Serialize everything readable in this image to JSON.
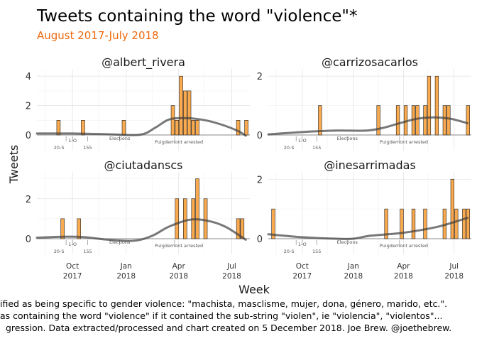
{
  "title": "Tweets containing the word \"violence\"*",
  "subtitle": "August 2017-July 2018",
  "colors": {
    "subtitle": "#ee6a10",
    "bar_fill": "#f9a94e",
    "bar_stroke": "#1f1f1f",
    "smooth": "#3f3f3f"
  },
  "chart_data": {
    "type": "bar",
    "subtype": "faceted weekly histogram with smoothed loess-style trend line",
    "xlabel": "Week",
    "ylabel": "Tweets",
    "x_unit": "week",
    "xlim": [
      "2017-08-01",
      "2018-08-01"
    ],
    "x_ticks": [
      {
        "date": "2017-10-01",
        "label": [
          "Oct",
          "2017"
        ]
      },
      {
        "date": "2018-01-01",
        "label": [
          "Jan",
          "2018"
        ]
      },
      {
        "date": "2018-04-01",
        "label": [
          "Apr",
          "2018"
        ]
      },
      {
        "date": "2018-07-01",
        "label": [
          "Jul",
          "2018"
        ]
      }
    ],
    "events": [
      {
        "date": "2017-09-20",
        "label": "20-S"
      },
      {
        "date": "2017-10-01",
        "label": "1-O"
      },
      {
        "date": "2017-10-27",
        "label": "155"
      },
      {
        "date": "2017-12-21",
        "label": "Elections"
      },
      {
        "date": "2018-03-25",
        "label": "Puigdemont arrested"
      }
    ],
    "panels": [
      {
        "name": "@albert_rivera",
        "ylim": [
          0,
          4.3
        ],
        "yticks": [
          0,
          2,
          4
        ],
        "bars": [
          {
            "week": "2017-09-04",
            "value": 1
          },
          {
            "week": "2017-10-16",
            "value": 1
          },
          {
            "week": "2017-12-25",
            "value": 1
          },
          {
            "week": "2018-03-19",
            "value": 2
          },
          {
            "week": "2018-03-26",
            "value": 1
          },
          {
            "week": "2018-04-02",
            "value": 4
          },
          {
            "week": "2018-04-09",
            "value": 3
          },
          {
            "week": "2018-04-16",
            "value": 3
          },
          {
            "week": "2018-04-23",
            "value": 1
          },
          {
            "week": "2018-04-30",
            "value": 1
          },
          {
            "week": "2018-07-09",
            "value": 1
          },
          {
            "week": "2018-07-23",
            "value": 1
          }
        ],
        "smooth": [
          {
            "date": "2017-08-01",
            "value": 0.1
          },
          {
            "date": "2017-10-01",
            "value": 0.1
          },
          {
            "date": "2017-12-01",
            "value": 0.05
          },
          {
            "date": "2018-01-25",
            "value": 0.02
          },
          {
            "date": "2018-02-20",
            "value": 0.5
          },
          {
            "date": "2018-03-15",
            "value": 1.05
          },
          {
            "date": "2018-04-10",
            "value": 1.15
          },
          {
            "date": "2018-05-10",
            "value": 1.05
          },
          {
            "date": "2018-06-10",
            "value": 0.75
          },
          {
            "date": "2018-07-10",
            "value": 0.3
          },
          {
            "date": "2018-07-25",
            "value": -0.05
          }
        ]
      },
      {
        "name": "@carrizosacarlos",
        "ylim": [
          0,
          2.15
        ],
        "yticks": [
          0,
          2
        ],
        "bars": [
          {
            "week": "2017-10-30",
            "value": 1
          },
          {
            "week": "2018-02-12",
            "value": 1
          },
          {
            "week": "2018-03-19",
            "value": 1
          },
          {
            "week": "2018-04-02",
            "value": 1
          },
          {
            "week": "2018-04-16",
            "value": 1
          },
          {
            "week": "2018-04-23",
            "value": 1
          },
          {
            "week": "2018-05-07",
            "value": 1
          },
          {
            "week": "2018-05-14",
            "value": 2
          },
          {
            "week": "2018-05-28",
            "value": 2
          },
          {
            "week": "2018-06-11",
            "value": 1
          },
          {
            "week": "2018-06-18",
            "value": 1
          },
          {
            "week": "2018-07-23",
            "value": 1
          }
        ],
        "smooth": [
          {
            "date": "2017-08-01",
            "value": 0.02
          },
          {
            "date": "2017-10-01",
            "value": 0.1
          },
          {
            "date": "2017-12-01",
            "value": 0.15
          },
          {
            "date": "2018-01-25",
            "value": 0.15
          },
          {
            "date": "2018-02-25",
            "value": 0.25
          },
          {
            "date": "2018-03-25",
            "value": 0.4
          },
          {
            "date": "2018-04-25",
            "value": 0.55
          },
          {
            "date": "2018-05-25",
            "value": 0.6
          },
          {
            "date": "2018-06-25",
            "value": 0.55
          },
          {
            "date": "2018-07-25",
            "value": 0.4
          }
        ]
      },
      {
        "name": "@ciutadanscs",
        "ylim": [
          0,
          3.2
        ],
        "yticks": [
          0,
          2
        ],
        "bars": [
          {
            "week": "2017-09-11",
            "value": 1
          },
          {
            "week": "2017-10-09",
            "value": 1
          },
          {
            "week": "2018-03-26",
            "value": 2
          },
          {
            "week": "2018-04-09",
            "value": 2
          },
          {
            "week": "2018-04-23",
            "value": 2
          },
          {
            "week": "2018-04-30",
            "value": 3
          },
          {
            "week": "2018-05-14",
            "value": 2
          },
          {
            "week": "2018-07-09",
            "value": 1
          },
          {
            "week": "2018-07-16",
            "value": 1
          }
        ],
        "smooth": [
          {
            "date": "2017-08-01",
            "value": 0.05
          },
          {
            "date": "2017-09-15",
            "value": 0.1
          },
          {
            "date": "2017-10-20",
            "value": 0.08
          },
          {
            "date": "2017-12-01",
            "value": -0.05
          },
          {
            "date": "2018-01-15",
            "value": -0.1
          },
          {
            "date": "2018-02-15",
            "value": 0.15
          },
          {
            "date": "2018-03-15",
            "value": 0.6
          },
          {
            "date": "2018-04-20",
            "value": 0.95
          },
          {
            "date": "2018-05-20",
            "value": 0.9
          },
          {
            "date": "2018-06-20",
            "value": 0.6
          },
          {
            "date": "2018-07-25",
            "value": -0.05
          }
        ]
      },
      {
        "name": "@inesarrimadas",
        "ylim": [
          0,
          2.15
        ],
        "yticks": [
          0,
          2
        ],
        "bars": [
          {
            "week": "2017-08-07",
            "value": 1
          },
          {
            "week": "2018-02-26",
            "value": 1
          },
          {
            "week": "2018-03-26",
            "value": 1
          },
          {
            "week": "2018-04-16",
            "value": 1
          },
          {
            "week": "2018-05-07",
            "value": 1
          },
          {
            "week": "2018-06-11",
            "value": 1
          },
          {
            "week": "2018-06-25",
            "value": 2
          },
          {
            "week": "2018-07-02",
            "value": 1
          },
          {
            "week": "2018-07-16",
            "value": 1
          },
          {
            "week": "2018-07-23",
            "value": 1
          }
        ],
        "smooth": [
          {
            "date": "2017-08-01",
            "value": 0.15
          },
          {
            "date": "2017-10-01",
            "value": 0.05
          },
          {
            "date": "2017-12-01",
            "value": 0.0
          },
          {
            "date": "2018-01-01",
            "value": 0.0
          },
          {
            "date": "2018-02-01",
            "value": 0.1
          },
          {
            "date": "2018-04-01",
            "value": 0.2
          },
          {
            "date": "2018-06-01",
            "value": 0.4
          },
          {
            "date": "2018-07-25",
            "value": 0.7
          }
        ]
      }
    ],
    "caption": [
      "ified as being specific to gender violence: \"machista, masclisme, mujer, dona, género, marido, etc.\".",
      "as containing the word \"violence\" if it contained the sub-string \"violen\", ie \"violencia\", \"violentos\"...",
      "gression. Data extracted/processed and chart created on 5 December 2018. Joe Brew. @joethebrew."
    ]
  }
}
